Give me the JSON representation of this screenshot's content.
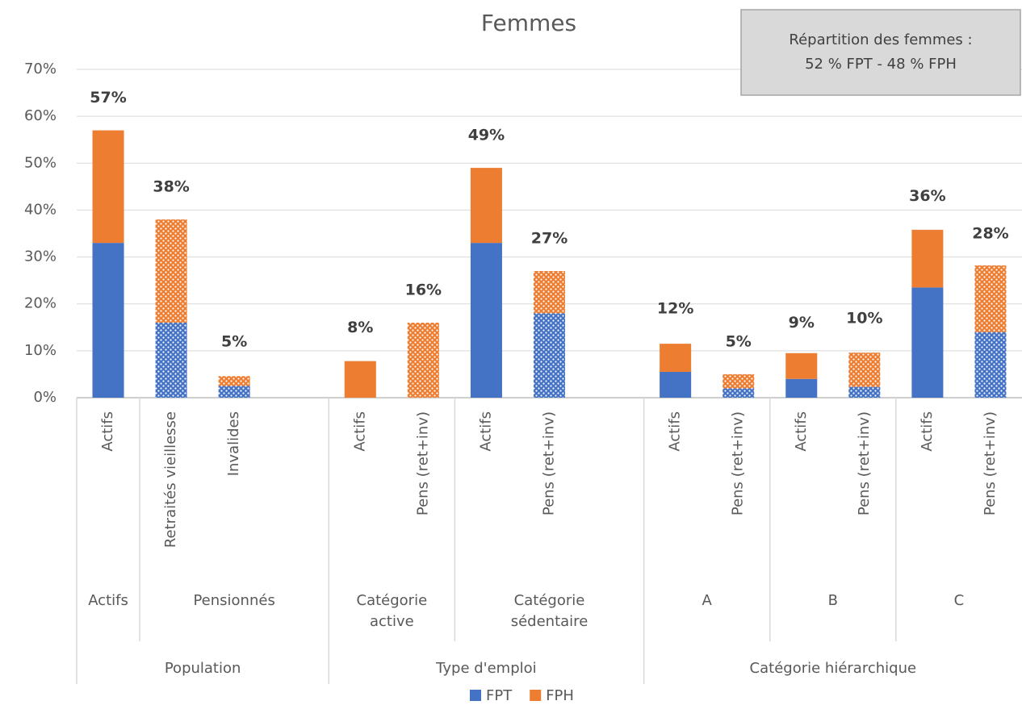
{
  "chart_data": {
    "type": "stacked_bar",
    "title": "Femmes",
    "annotation": [
      "Répartition des femmes :",
      "52 % FPT - 48 % FPH"
    ],
    "levels": [
      {
        "label": "Population",
        "groups": [
          {
            "label": "Actifs",
            "categories": [
              "Actifs"
            ]
          },
          {
            "label": "Pensionnés",
            "categories": [
              "Retraités vieillesse",
              "Invalides",
              null
            ]
          }
        ]
      },
      {
        "label": "Type d'emploi",
        "groups": [
          {
            "label": "Catégorie active",
            "categories": [
              "Actifs",
              "Pens (ret+inv)"
            ]
          },
          {
            "label": "Catégorie sédentaire",
            "categories": [
              "Actifs",
              "Pens (ret+inv)",
              null
            ]
          }
        ]
      },
      {
        "label": "Catégorie hiérarchique",
        "groups": [
          {
            "label": "A",
            "categories": [
              "Actifs",
              "Pens (ret+inv)"
            ]
          },
          {
            "label": "B",
            "categories": [
              "Actifs",
              "Pens (ret+inv)"
            ]
          },
          {
            "label": "C",
            "categories": [
              "Actifs",
              "Pens (ret+inv)"
            ]
          }
        ]
      }
    ],
    "series": [
      {
        "name": "FPT",
        "color": "#4472c4",
        "values": [
          33,
          16,
          2.5,
          null,
          0,
          0,
          33,
          18,
          null,
          5.5,
          2,
          4,
          2.3,
          23.5,
          14
        ]
      },
      {
        "name": "FPH",
        "color": "#ed7d31",
        "values": [
          24,
          22,
          2.1,
          null,
          7.8,
          16,
          16,
          9,
          null,
          6,
          3,
          5.5,
          7.3,
          12.3,
          14.2
        ]
      }
    ],
    "patterned": [
      false,
      true,
      true,
      null,
      false,
      true,
      false,
      true,
      null,
      false,
      true,
      false,
      true,
      false,
      true
    ],
    "data_labels": {
      "values": [
        57,
        38,
        5,
        null,
        8,
        16,
        49,
        27,
        null,
        12,
        5,
        9,
        10,
        36,
        28
      ],
      "value_labels": [
        "57%",
        "38%",
        "5%",
        null,
        "8%",
        "16%",
        "49%",
        "27%",
        null,
        "12%",
        "5%",
        "9%",
        "10%",
        "36%",
        "28%"
      ]
    },
    "ylim": [
      0,
      70
    ],
    "yticks": [
      {
        "value": 0,
        "label": "0%"
      },
      {
        "value": 10,
        "label": "10%"
      },
      {
        "value": 20,
        "label": "20%"
      },
      {
        "value": 30,
        "label": "30%"
      },
      {
        "value": 40,
        "label": "40%"
      },
      {
        "value": 50,
        "label": "50%"
      },
      {
        "value": 60,
        "label": "60%"
      },
      {
        "value": 70,
        "label": "70%"
      }
    ],
    "grid": true,
    "legend": "bottom"
  }
}
